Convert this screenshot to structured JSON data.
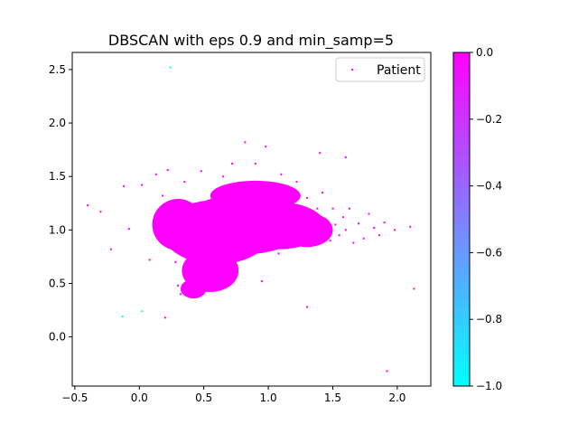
{
  "chart_data": {
    "type": "scatter",
    "title": "DBSCAN with eps 0.9 and min_samp=5",
    "xlabel": "",
    "ylabel": "",
    "xlim": [
      -0.52,
      2.26
    ],
    "ylim": [
      -0.46,
      2.66
    ],
    "xticks": [
      -0.5,
      0.0,
      0.5,
      1.0,
      1.5,
      2.0
    ],
    "xtick_labels": [
      "−0.5",
      "0.0",
      "0.5",
      "1.0",
      "1.5",
      "2.0"
    ],
    "yticks": [
      0.0,
      0.5,
      1.0,
      1.5,
      2.0,
      2.5
    ],
    "ytick_labels": [
      "0.0",
      "0.5",
      "1.0",
      "1.5",
      "2.0",
      "2.5"
    ],
    "grid": false,
    "legend": {
      "position": "top-right",
      "entries": [
        "Patient"
      ]
    },
    "colormap": "cool",
    "colorbar": {
      "range": [
        -1.0,
        0.0
      ],
      "ticks": [
        0.0,
        -0.2,
        -0.4,
        -0.6,
        -0.8,
        -1.0
      ],
      "tick_labels": [
        "0.0",
        "−0.2",
        "−0.4",
        "−0.6",
        "−0.8",
        "−1.0"
      ]
    },
    "series": [
      {
        "name": "Patient",
        "cluster_label": 0,
        "color": "#ff00ff",
        "points": [
          [
            -0.4,
            1.23
          ],
          [
            -0.3,
            1.17
          ],
          [
            -0.22,
            0.82
          ],
          [
            -0.12,
            1.41
          ],
          [
            -0.08,
            1.01
          ],
          [
            0.02,
            1.42
          ],
          [
            0.08,
            0.72
          ],
          [
            0.13,
            1.52
          ],
          [
            0.18,
            1.32
          ],
          [
            0.22,
            1.56
          ],
          [
            0.28,
            0.7
          ],
          [
            0.3,
            0.48
          ],
          [
            0.32,
            0.4
          ],
          [
            0.35,
            1.45
          ],
          [
            0.38,
            0.82
          ],
          [
            0.4,
            1.18
          ],
          [
            0.45,
            0.6
          ],
          [
            0.48,
            1.55
          ],
          [
            0.5,
            1.02
          ],
          [
            0.55,
            0.78
          ],
          [
            0.58,
            1.3
          ],
          [
            0.6,
            0.52
          ],
          [
            0.62,
            1.12
          ],
          [
            0.65,
            1.5
          ],
          [
            0.68,
            0.9
          ],
          [
            0.7,
            1.18
          ],
          [
            0.72,
            1.62
          ],
          [
            0.75,
            0.72
          ],
          [
            0.78,
            1.35
          ],
          [
            0.8,
            0.95
          ],
          [
            0.82,
            1.08
          ],
          [
            0.85,
            1.42
          ],
          [
            0.88,
            0.88
          ],
          [
            0.9,
            1.62
          ],
          [
            0.92,
            1.2
          ],
          [
            0.95,
            0.52
          ],
          [
            0.98,
            0.82
          ],
          [
            1.0,
            1.38
          ],
          [
            1.02,
            1.05
          ],
          [
            1.05,
            1.15
          ],
          [
            1.08,
            0.78
          ],
          [
            1.1,
            1.52
          ],
          [
            1.12,
            0.98
          ],
          [
            1.15,
            1.28
          ],
          [
            1.18,
            0.86
          ],
          [
            1.2,
            1.12
          ],
          [
            1.22,
            1.45
          ],
          [
            1.25,
            1.02
          ],
          [
            1.28,
            0.92
          ],
          [
            1.3,
            1.3
          ],
          [
            1.32,
            1.08
          ],
          [
            1.35,
            0.95
          ],
          [
            1.38,
            1.2
          ],
          [
            1.4,
            1.0
          ],
          [
            1.42,
            1.35
          ],
          [
            1.45,
            1.1
          ],
          [
            1.48,
            0.9
          ],
          [
            1.5,
            1.2
          ],
          [
            1.52,
            1.05
          ],
          [
            1.55,
            0.95
          ],
          [
            1.58,
            1.12
          ],
          [
            1.6,
            1.0
          ],
          [
            1.63,
            1.2
          ],
          [
            1.66,
            0.88
          ],
          [
            1.7,
            1.06
          ],
          [
            1.74,
            0.92
          ],
          [
            1.78,
            1.15
          ],
          [
            1.82,
            1.02
          ],
          [
            1.86,
            0.95
          ],
          [
            1.9,
            1.07
          ],
          [
            1.98,
            1.0
          ],
          [
            2.1,
            1.03
          ],
          [
            2.13,
            0.45
          ],
          [
            1.92,
            -0.32
          ],
          [
            0.2,
            0.18
          ],
          [
            0.98,
            1.78
          ],
          [
            1.4,
            1.72
          ],
          [
            1.6,
            1.68
          ],
          [
            0.82,
            1.82
          ],
          [
            1.3,
            0.28
          ]
        ]
      },
      {
        "name": "",
        "cluster_label": -1,
        "color": "#00ffff",
        "points": [
          [
            0.24,
            2.52
          ],
          [
            -0.13,
            0.19
          ],
          [
            0.02,
            0.24
          ]
        ]
      }
    ]
  }
}
